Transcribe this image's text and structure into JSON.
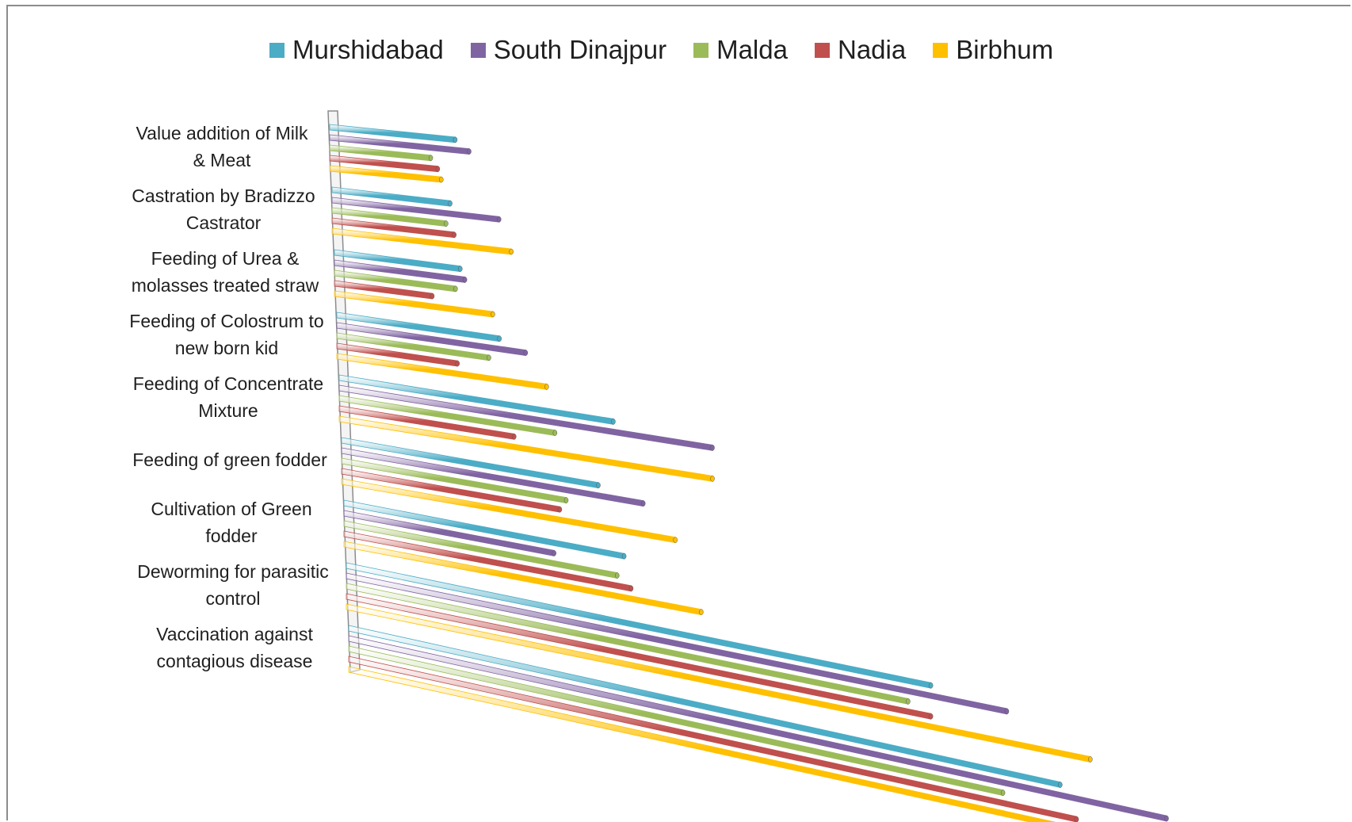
{
  "chart_data": {
    "type": "bar",
    "orientation": "horizontal",
    "style": "3d-perspective",
    "legend": "top",
    "grid": false,
    "categories": [
      [
        "Value addition of Milk",
        "& Meat"
      ],
      [
        "Castration by Bradizzo",
        "Castrator"
      ],
      [
        "Feeding of Urea  &",
        "molasses treated straw"
      ],
      [
        "Feeding of Colostrum to",
        "new born kid"
      ],
      [
        "Feeding of Concentrate",
        "Mixture"
      ],
      [
        "Feeding of green fodder"
      ],
      [
        "Cultivation of Green",
        "fodder"
      ],
      [
        "Deworming for parasitic",
        "control"
      ],
      [
        "Vaccination against",
        "contagious disease"
      ]
    ],
    "series": [
      {
        "name": "Murshidabad",
        "color": "#4BACC6",
        "values": [
          36,
          29,
          27,
          31,
          47,
          40,
          40,
          77,
          87
        ]
      },
      {
        "name": "South Dinajpur",
        "color": "#8064A2",
        "values": [
          40,
          41,
          28,
          36,
          64,
          47,
          30,
          87,
          100
        ]
      },
      {
        "name": "Malda",
        "color": "#9BBB59",
        "values": [
          29,
          28,
          26,
          29,
          37,
          35,
          39,
          74,
          80
        ]
      },
      {
        "name": "Nadia",
        "color": "#C0504D",
        "values": [
          31,
          30,
          21,
          23,
          30,
          34,
          41,
          77,
          89
        ]
      },
      {
        "name": "Birbhum",
        "color": "#FFC000",
        "values": [
          32,
          44,
          34,
          40,
          64,
          52,
          51,
          98,
          100
        ]
      }
    ]
  }
}
